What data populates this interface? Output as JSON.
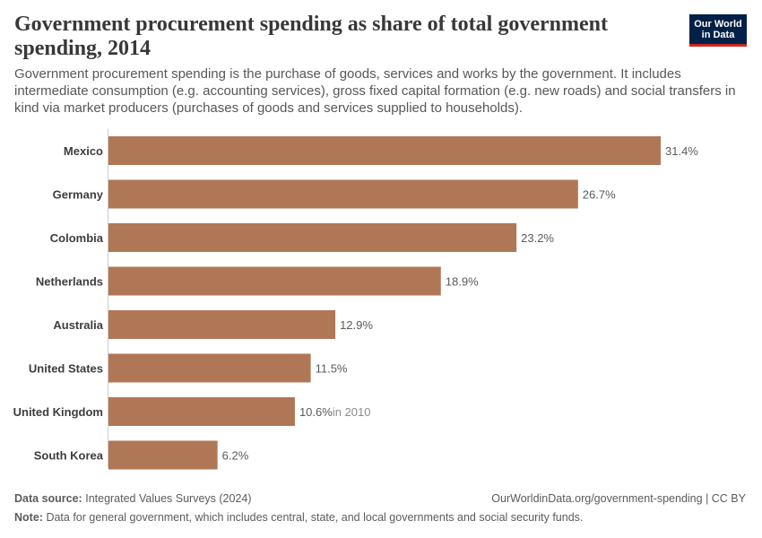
{
  "header": {
    "title": "Government procurement spending as share of total government spending, 2014",
    "subtitle": "Government procurement spending is the purchase of goods, services and works by the government. It includes intermediate consumption (e.g. accounting services), gross fixed capital formation (e.g. new roads) and social transfers in kind via market producers (purchases of goods and services supplied to households).",
    "logo_line1": "Our World",
    "logo_line2": "in Data"
  },
  "colors": {
    "bar": "#b07756",
    "axis": "#cccccc",
    "label": "#3d3d3d",
    "value": "#5b5b5b",
    "annotation": "#8c8c8c",
    "logo_bg": "#002147",
    "logo_accent": "#ce261e"
  },
  "chart_data": {
    "type": "bar",
    "orientation": "horizontal",
    "title": "Government procurement spending as share of total government spending, 2014",
    "xlim": [
      0,
      31.4
    ],
    "unit": "%",
    "grid": false,
    "categories": [
      "Mexico",
      "Germany",
      "Colombia",
      "Netherlands",
      "Australia",
      "United States",
      "United Kingdom",
      "South Korea"
    ],
    "values": [
      31.4,
      26.7,
      23.2,
      18.9,
      12.9,
      11.5,
      10.6,
      6.2
    ],
    "value_labels": [
      "31.4%",
      "26.7%",
      "23.2%",
      "18.9%",
      "12.9%",
      "11.5%",
      "10.6%",
      "6.2%"
    ],
    "annotations": [
      "",
      "",
      "",
      "",
      "",
      "",
      "in 2010",
      ""
    ]
  },
  "footer": {
    "source_label": "Data source:",
    "source_text": "Integrated Values Surveys (2024)",
    "url_text": "OurWorldinData.org/government-spending | CC BY",
    "note_label": "Note:",
    "note_text": "Data for general government, which includes central, state, and local governments and social security funds."
  }
}
